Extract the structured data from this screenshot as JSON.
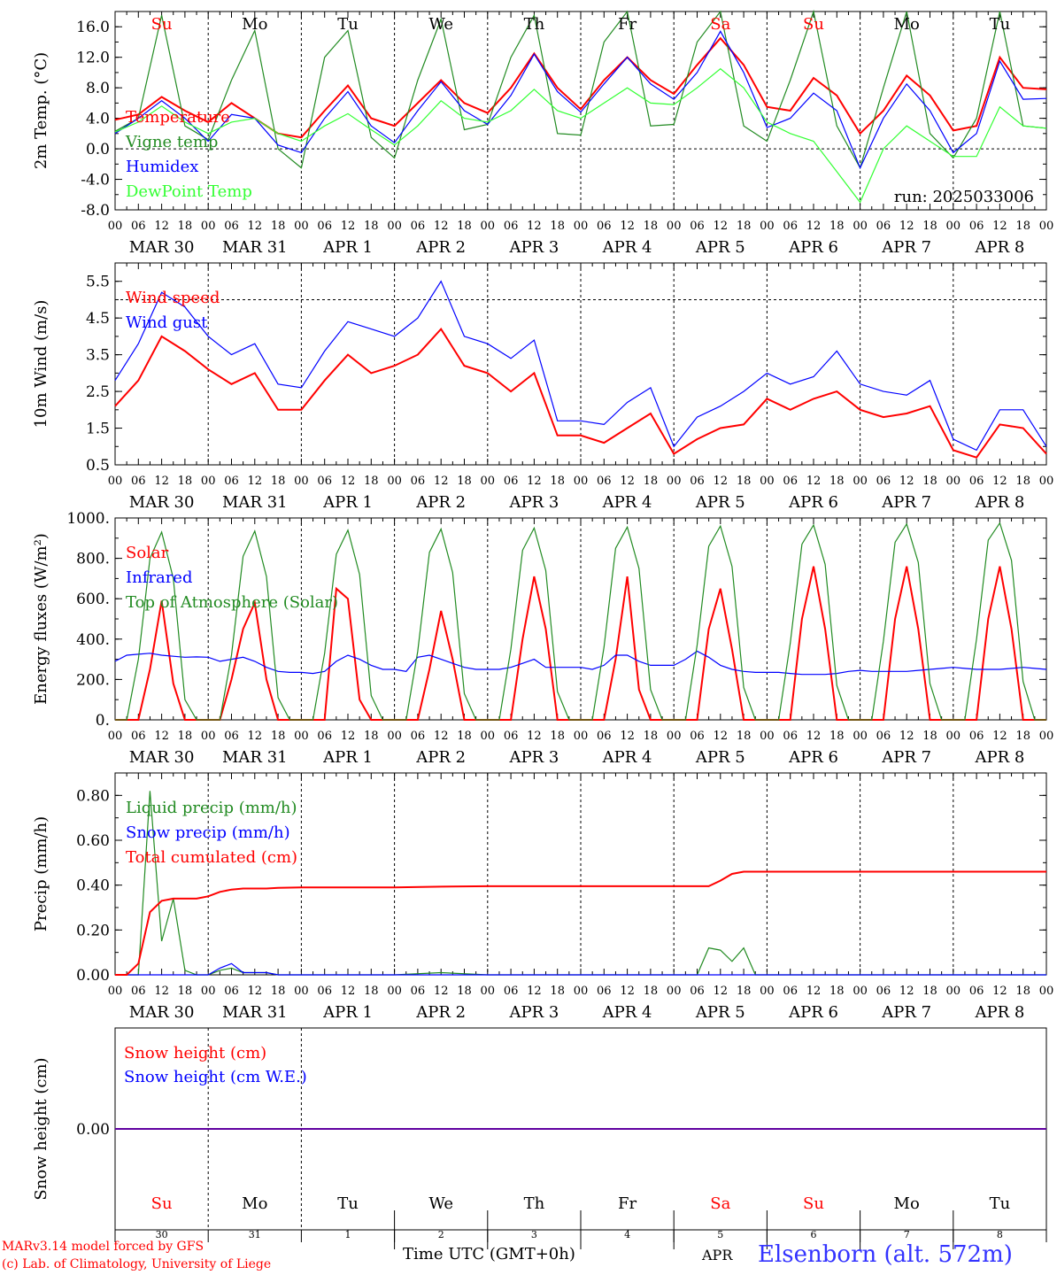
{
  "days": [
    {
      "dow": "Su",
      "date": "MAR 30",
      "num": "30",
      "weekend": true
    },
    {
      "dow": "Mo",
      "date": "MAR 31",
      "num": "31",
      "weekend": false
    },
    {
      "dow": "Tu",
      "date": "APR  1",
      "num": "1",
      "weekend": false
    },
    {
      "dow": "We",
      "date": "APR  2",
      "num": "2",
      "weekend": false
    },
    {
      "dow": "Th",
      "date": "APR  3",
      "num": "3",
      "weekend": false
    },
    {
      "dow": "Fr",
      "date": "APR  4",
      "num": "4",
      "weekend": false
    },
    {
      "dow": "Sa",
      "date": "APR  5",
      "num": "5",
      "weekend": true
    },
    {
      "dow": "Su",
      "date": "APR  6",
      "num": "6",
      "weekend": true
    },
    {
      "dow": "Mo",
      "date": "APR  7",
      "num": "7",
      "weekend": false
    },
    {
      "dow": "Tu",
      "date": "APR  8",
      "num": "8",
      "weekend": false
    }
  ],
  "hour_ticks": [
    "00",
    "06",
    "12",
    "18"
  ],
  "final_tick": "00",
  "colors": {
    "red": "#ff0000",
    "blue": "#0000ff",
    "dark_green": "#228b22",
    "light_green": "#33ff33",
    "axis": "#000000"
  },
  "chart_data": [
    {
      "type": "line",
      "ylabel": "2m Temp. (°C)",
      "ylim": [
        -8,
        18
      ],
      "yticks": [
        "-8.0",
        "-4.0",
        "0.0",
        "4.0",
        "8.0",
        "12.0",
        "16.0"
      ],
      "ytick_values": [
        -8,
        -4,
        0,
        4,
        8,
        12,
        16
      ],
      "ref_line": 0,
      "annotation": "run: 2025033006",
      "x_hours": [
        0,
        6,
        12,
        18,
        24,
        30,
        36,
        42,
        48,
        54,
        60,
        66,
        72,
        78,
        84,
        90,
        96,
        102,
        108,
        114,
        120,
        126,
        132,
        138,
        144,
        150,
        156,
        162,
        168,
        174,
        180,
        186,
        192,
        198,
        204,
        210,
        216,
        222,
        228,
        234,
        240
      ],
      "series": [
        {
          "name": "Temperature",
          "color": "red",
          "values": [
            3.8,
            4.5,
            6.8,
            5.0,
            3.5,
            6.0,
            4.0,
            2.0,
            1.5,
            5.0,
            8.3,
            4.0,
            3.0,
            6.0,
            9.0,
            6.0,
            4.7,
            8.0,
            12.5,
            8.0,
            5.2,
            9.0,
            12.0,
            9.0,
            7.2,
            11.0,
            14.5,
            11.0,
            5.5,
            5.0,
            9.3,
            7.0,
            2.0,
            5.0,
            9.6,
            7.0,
            2.4,
            3.0,
            12.0,
            8.0,
            7.8
          ]
        },
        {
          "name": "Vigne temp",
          "color": "dark_green",
          "values": [
            2.3,
            4.0,
            17.5,
            3.0,
            1.2,
            9.0,
            15.5,
            0.0,
            -2.5,
            12.0,
            15.5,
            1.5,
            -1.2,
            9.0,
            17.0,
            2.5,
            3.2,
            12.0,
            17.5,
            2.0,
            1.8,
            14.0,
            18.0,
            3.0,
            3.2,
            14.0,
            18.0,
            3.0,
            1.0,
            9.0,
            18.0,
            3.0,
            -2.5,
            8.0,
            18.0,
            2.0,
            -1.2,
            4.0,
            18.0,
            3.0,
            2.7
          ]
        },
        {
          "name": "Humidex",
          "color": "blue",
          "values": [
            2.0,
            4.0,
            6.3,
            4.0,
            1.0,
            4.5,
            4.0,
            0.5,
            -0.5,
            4.0,
            7.5,
            3.0,
            0.8,
            5.0,
            8.8,
            5.0,
            3.2,
            7.0,
            12.4,
            7.5,
            4.8,
            8.5,
            12.0,
            8.5,
            6.5,
            10.0,
            15.4,
            10.0,
            2.8,
            4.0,
            7.3,
            5.0,
            -2.5,
            4.0,
            8.5,
            5.0,
            -0.5,
            2.0,
            11.5,
            6.5,
            6.6
          ]
        },
        {
          "name": "DewPoint Temp",
          "color": "light_green",
          "values": [
            2.2,
            3.5,
            5.6,
            3.5,
            2.0,
            3.5,
            4.0,
            2.0,
            1.0,
            3.0,
            4.6,
            2.5,
            0.5,
            3.0,
            6.3,
            4.0,
            3.5,
            5.0,
            7.8,
            5.0,
            4.0,
            6.0,
            8.0,
            6.0,
            5.8,
            8.0,
            10.5,
            8.0,
            3.5,
            2.0,
            1.0,
            -3.0,
            -7.0,
            0.0,
            3.0,
            1.0,
            -1.0,
            -1.0,
            5.5,
            3.0,
            2.7
          ]
        }
      ],
      "legend": [
        "Temperature",
        "Vigne temp",
        "Humidex",
        "DewPoint Temp"
      ]
    },
    {
      "type": "line",
      "ylabel": "10m Wind (m/s)",
      "ylim": [
        0.5,
        6.0
      ],
      "yticks": [
        "0.5",
        "1.5",
        "2.5",
        "3.5",
        "4.5",
        "5.5"
      ],
      "ytick_values": [
        0.5,
        1.5,
        2.5,
        3.5,
        4.5,
        5.5
      ],
      "ref_line": 5.0,
      "x_hours": [
        0,
        6,
        12,
        18,
        24,
        30,
        36,
        42,
        48,
        54,
        60,
        66,
        72,
        78,
        84,
        90,
        96,
        102,
        108,
        114,
        120,
        126,
        132,
        138,
        144,
        150,
        156,
        162,
        168,
        174,
        180,
        186,
        192,
        198,
        204,
        210,
        216,
        222,
        228,
        234,
        240
      ],
      "series": [
        {
          "name": "Wind speed",
          "color": "red",
          "values": [
            2.1,
            2.8,
            4.0,
            3.6,
            3.1,
            2.7,
            3.0,
            2.0,
            2.0,
            2.8,
            3.5,
            3.0,
            3.2,
            3.5,
            4.2,
            3.2,
            3.0,
            2.5,
            3.0,
            1.3,
            1.3,
            1.1,
            1.5,
            1.9,
            0.8,
            1.2,
            1.5,
            1.6,
            2.3,
            2.0,
            2.3,
            2.5,
            2.0,
            1.8,
            1.9,
            2.1,
            0.9,
            0.7,
            1.6,
            1.5,
            0.8
          ]
        },
        {
          "name": "Wind gust",
          "color": "blue",
          "values": [
            2.8,
            3.8,
            5.2,
            4.8,
            4.0,
            3.5,
            3.8,
            2.7,
            2.6,
            3.6,
            4.4,
            4.2,
            4.0,
            4.5,
            5.5,
            4.0,
            3.8,
            3.4,
            3.9,
            1.7,
            1.7,
            1.6,
            2.2,
            2.6,
            1.0,
            1.8,
            2.1,
            2.5,
            3.0,
            2.7,
            2.9,
            3.6,
            2.7,
            2.5,
            2.4,
            2.8,
            1.2,
            0.9,
            2.0,
            2.0,
            1.0
          ]
        }
      ],
      "legend": [
        "Wind speed",
        "Wind gust"
      ]
    },
    {
      "type": "line",
      "ylabel": "Energy fluxes (W/m²)",
      "ylim": [
        0,
        1000
      ],
      "yticks": [
        "0.",
        "200.",
        "400.",
        "600.",
        "800.",
        "1000."
      ],
      "ytick_values": [
        0,
        200,
        400,
        600,
        800,
        1000
      ],
      "x_hours": [
        0,
        3,
        6,
        9,
        12,
        15,
        18,
        21,
        24,
        27,
        30,
        33,
        36,
        39,
        42,
        45,
        48,
        51,
        54,
        57,
        60,
        63,
        66,
        69,
        72,
        75,
        78,
        81,
        84,
        87,
        90,
        93,
        96,
        99,
        102,
        105,
        108,
        111,
        114,
        117,
        120,
        123,
        126,
        129,
        132,
        135,
        138,
        141,
        144,
        147,
        150,
        153,
        156,
        159,
        162,
        165,
        168,
        171,
        174,
        177,
        180,
        183,
        186,
        189,
        192,
        195,
        198,
        201,
        204,
        207,
        210,
        213,
        216,
        219,
        222,
        225,
        228,
        231,
        234,
        237,
        240
      ],
      "series": [
        {
          "name": "Solar",
          "color": "red",
          "values": [
            0,
            0,
            0,
            250,
            590,
            180,
            0,
            0,
            0,
            0,
            200,
            450,
            580,
            200,
            0,
            0,
            0,
            0,
            0,
            650,
            600,
            100,
            0,
            0,
            0,
            0,
            0,
            250,
            540,
            300,
            0,
            0,
            0,
            0,
            0,
            400,
            710,
            450,
            0,
            0,
            0,
            0,
            0,
            300,
            710,
            150,
            0,
            0,
            0,
            0,
            0,
            450,
            650,
            350,
            0,
            0,
            0,
            0,
            0,
            500,
            760,
            450,
            0,
            0,
            0,
            0,
            0,
            500,
            760,
            450,
            0,
            0,
            0,
            0,
            0,
            500,
            760,
            450,
            0,
            0,
            0
          ]
        },
        {
          "name": "Infrared",
          "color": "blue",
          "values": [
            290,
            320,
            325,
            330,
            320,
            315,
            310,
            312,
            310,
            290,
            300,
            310,
            290,
            260,
            240,
            235,
            235,
            230,
            240,
            290,
            320,
            300,
            270,
            250,
            250,
            240,
            310,
            320,
            300,
            280,
            260,
            250,
            250,
            250,
            260,
            280,
            300,
            260,
            260,
            260,
            260,
            250,
            270,
            320,
            320,
            290,
            270,
            270,
            270,
            300,
            340,
            310,
            270,
            250,
            240,
            235,
            235,
            235,
            230,
            225,
            225,
            225,
            230,
            240,
            245,
            240,
            240,
            240,
            240,
            245,
            250,
            255,
            260,
            255,
            250,
            250,
            250,
            255,
            260,
            255,
            250
          ]
        },
        {
          "name": "Top of Atmosphere (Solar)",
          "color": "dark_green",
          "values": [
            0,
            0,
            300,
            800,
            930,
            700,
            100,
            0,
            0,
            0,
            320,
            810,
            935,
            710,
            110,
            0,
            0,
            0,
            330,
            820,
            940,
            720,
            120,
            0,
            0,
            0,
            340,
            830,
            945,
            730,
            130,
            0,
            0,
            0,
            350,
            840,
            950,
            740,
            140,
            0,
            0,
            0,
            360,
            850,
            955,
            750,
            150,
            0,
            0,
            0,
            370,
            860,
            960,
            760,
            160,
            0,
            0,
            0,
            380,
            870,
            965,
            770,
            170,
            0,
            0,
            0,
            390,
            880,
            970,
            780,
            180,
            0,
            0,
            0,
            400,
            890,
            975,
            790,
            190,
            0,
            0
          ]
        }
      ],
      "legend": [
        "Solar",
        "Infrared",
        "Top of Atmosphere (Solar)"
      ]
    },
    {
      "type": "line",
      "ylabel": "Precip (mm/h)",
      "ylim": [
        0,
        0.9
      ],
      "yticks": [
        "0.00",
        "0.20",
        "0.40",
        "0.60",
        "0.80"
      ],
      "ytick_values": [
        0,
        0.2,
        0.4,
        0.6,
        0.8
      ],
      "x_hours": [
        0,
        3,
        6,
        9,
        12,
        15,
        18,
        21,
        24,
        27,
        30,
        33,
        36,
        39,
        42,
        48,
        60,
        72,
        84,
        96,
        108,
        120,
        132,
        144,
        150,
        153,
        156,
        159,
        162,
        165,
        168,
        180,
        192,
        204,
        216,
        228,
        240
      ],
      "series": [
        {
          "name": "Liquid precip (mm/h)",
          "color": "dark_green",
          "values": [
            0,
            0,
            0,
            0.82,
            0.15,
            0.34,
            0.02,
            0,
            0,
            0.02,
            0.03,
            0.01,
            0.01,
            0.01,
            0,
            0,
            0,
            0,
            0.01,
            0,
            0,
            0,
            0,
            0,
            0,
            0.12,
            0.11,
            0.06,
            0.12,
            0,
            0,
            0,
            0,
            0,
            0,
            0,
            0
          ]
        },
        {
          "name": "Snow precip (mm/h)",
          "color": "blue",
          "values": [
            0,
            0,
            0,
            0,
            0,
            0,
            0,
            0,
            0,
            0.03,
            0.05,
            0.01,
            0.01,
            0.01,
            0,
            0,
            0,
            0,
            0,
            0,
            0,
            0,
            0,
            0,
            0,
            0,
            0,
            0,
            0,
            0,
            0,
            0,
            0,
            0,
            0,
            0,
            0
          ]
        },
        {
          "name": "Total cumulated (cm)",
          "color": "red",
          "values": [
            0,
            0,
            0.05,
            0.28,
            0.33,
            0.34,
            0.34,
            0.34,
            0.35,
            0.37,
            0.38,
            0.385,
            0.385,
            0.385,
            0.388,
            0.39,
            0.39,
            0.39,
            0.393,
            0.395,
            0.395,
            0.395,
            0.395,
            0.395,
            0.395,
            0.395,
            0.42,
            0.45,
            0.46,
            0.46,
            0.46,
            0.46,
            0.46,
            0.46,
            0.46,
            0.46,
            0.46
          ]
        }
      ],
      "legend": [
        "Liquid precip (mm/h)",
        "Snow precip (mm/h)",
        "Total cumulated (cm)"
      ]
    },
    {
      "type": "line",
      "ylabel": "Snow height (cm)",
      "ylim": [
        -1,
        1
      ],
      "yticks": [
        "0.00"
      ],
      "ytick_values": [
        0
      ],
      "x_hours": [
        0,
        240
      ],
      "series": [
        {
          "name": "Snow height (cm)",
          "color": "red",
          "values": [
            0,
            0
          ]
        },
        {
          "name": "Snow height (cm W.E.)",
          "color": "blue",
          "values": [
            0,
            0
          ]
        }
      ],
      "legend": [
        "Snow height (cm)",
        "Snow height (cm W.E.)"
      ]
    }
  ],
  "xlabel": "Time UTC (GMT+0h)",
  "month_label": "APR",
  "station": "Elsenborn (alt. 572m)",
  "credits": [
    "MARv3.14 model forced by GFS",
    "(c) Lab. of Climatology, University of Liege"
  ]
}
